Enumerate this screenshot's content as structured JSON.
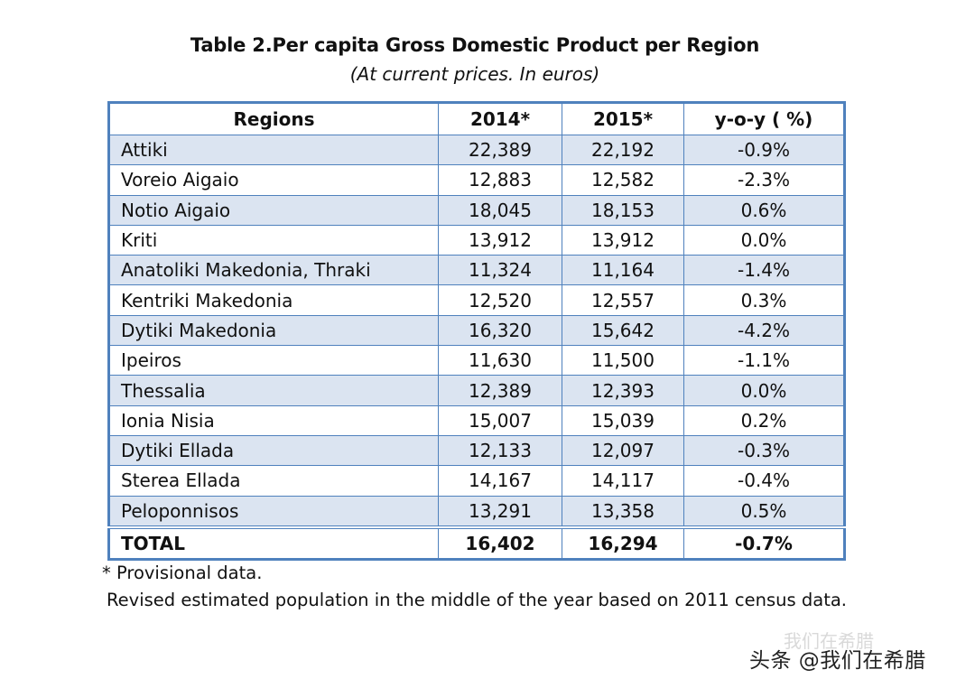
{
  "title": "Table 2.Per capita Gross Domestic Product per Region",
  "subtitle": "(At current prices. In euros)",
  "table": {
    "headers": [
      "Regions",
      "2014*",
      "2015*",
      "y-o-y ( %)"
    ],
    "rows": [
      {
        "region": "Attiki",
        "y2014": "22,389",
        "y2015": "22,192",
        "yoy": "-0.9%"
      },
      {
        "region": "Voreio Aigaio",
        "y2014": "12,883",
        "y2015": "12,582",
        "yoy": "-2.3%"
      },
      {
        "region": "Notio Aigaio",
        "y2014": "18,045",
        "y2015": "18,153",
        "yoy": "0.6%"
      },
      {
        "region": "Kriti",
        "y2014": "13,912",
        "y2015": "13,912",
        "yoy": "0.0%"
      },
      {
        "region": "Anatoliki Makedonia, Thraki",
        "y2014": "11,324",
        "y2015": "11,164",
        "yoy": "-1.4%"
      },
      {
        "region": "Kentriki Makedonia",
        "y2014": "12,520",
        "y2015": "12,557",
        "yoy": "0.3%"
      },
      {
        "region": "Dytiki Makedonia",
        "y2014": "16,320",
        "y2015": "15,642",
        "yoy": "-4.2%"
      },
      {
        "region": "Ipeiros",
        "y2014": "11,630",
        "y2015": "11,500",
        "yoy": "-1.1%"
      },
      {
        "region": "Thessalia",
        "y2014": "12,389",
        "y2015": "12,393",
        "yoy": "0.0%"
      },
      {
        "region": "Ionia Nisia",
        "y2014": "15,007",
        "y2015": "15,039",
        "yoy": "0.2%"
      },
      {
        "region": "Dytiki Ellada",
        "y2014": "12,133",
        "y2015": "12,097",
        "yoy": "-0.3%"
      },
      {
        "region": "Sterea Ellada",
        "y2014": "14,167",
        "y2015": "14,117",
        "yoy": "-0.4%"
      },
      {
        "region": "Peloponnisos",
        "y2014": "13,291",
        "y2015": "13,358",
        "yoy": "0.5%"
      }
    ],
    "total": {
      "region": "TOTAL",
      "y2014": "16,402",
      "y2015": "16,294",
      "yoy": "-0.7%"
    }
  },
  "notes": {
    "provisional": "* Provisional data.",
    "population": "Revised estimated population in the middle of the year based on 2011 census data."
  },
  "watermark": {
    "faint": "我们在希腊",
    "main": "头条 @我们在希腊"
  },
  "colors": {
    "border": "#4f81bd",
    "shaded_row": "#dbe4f1"
  }
}
